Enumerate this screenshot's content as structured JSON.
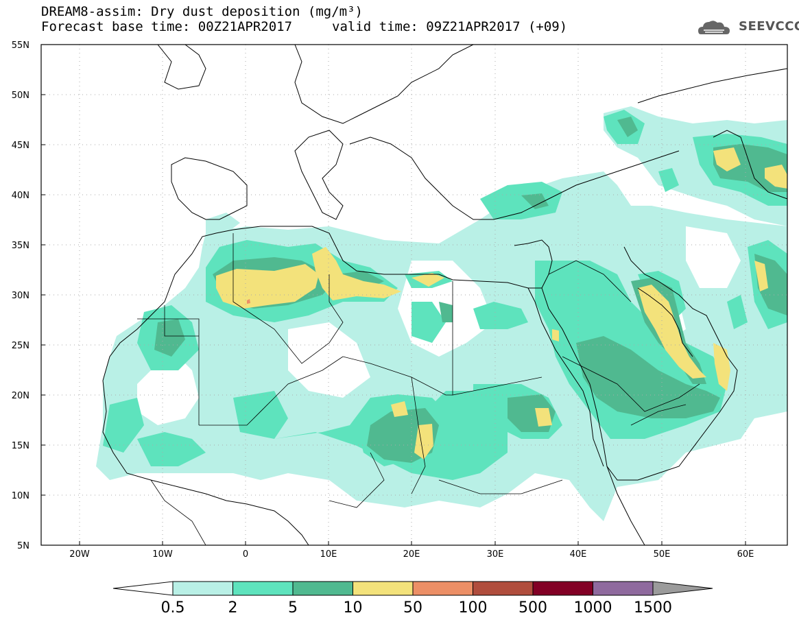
{
  "header": {
    "title": "DREAM8-assim: Dry dust deposition (mg/m³)",
    "base_time": "Forecast base time: 00Z21APR2017",
    "valid_time": "valid time: 09Z21APR2017 (+09)",
    "logo_text": "SEEVCCC",
    "logo_icon": "cloud-logo-icon"
  },
  "map": {
    "lon_labels": [
      "20W",
      "10W",
      "0",
      "10E",
      "20E",
      "30E",
      "40E",
      "50E",
      "60E"
    ],
    "lat_labels": [
      "55N",
      "50N",
      "45N",
      "40N",
      "35N",
      "30N",
      "25N",
      "20N",
      "15N",
      "10N",
      "5N"
    ]
  },
  "colorbar": {
    "labels": [
      "0.5",
      "2",
      "5",
      "10",
      "50",
      "100",
      "500",
      "1000",
      "1500"
    ],
    "colors": [
      "#b9f0e6",
      "#5ee3bd",
      "#50b990",
      "#f3e27b",
      "#ec8f66",
      "#b04d3d",
      "#820025",
      "#8f6a9e"
    ],
    "under_color": "#ffffff",
    "over_color": "#9b9b9b"
  }
}
